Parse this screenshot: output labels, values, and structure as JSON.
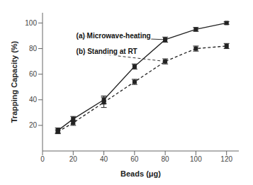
{
  "chart_data": {
    "type": "line",
    "x": [
      10,
      20,
      40,
      60,
      80,
      100,
      120
    ],
    "series": [
      {
        "color": "#222222",
        "line_style": "solid",
        "marker": "square",
        "values": [
          16,
          25,
          40,
          66,
          87,
          95,
          100
        ],
        "errors": [
          2,
          2,
          3,
          2,
          2,
          1.5,
          1
        ]
      },
      {
        "color": "#222222",
        "line_style": "dashed",
        "marker": "square",
        "values": [
          15,
          22,
          38,
          54,
          70,
          80,
          82
        ],
        "errors": [
          1.5,
          2,
          4,
          2,
          2,
          2,
          2
        ]
      }
    ],
    "xlabel": "Beads (μg)",
    "ylabel": "Trapping Capacity (%)",
    "xlim": [
      0,
      128
    ],
    "ylim": [
      0,
      108
    ],
    "xticks": [
      0,
      20,
      40,
      60,
      80,
      100,
      120
    ],
    "yticks": [
      20,
      40,
      60,
      80,
      100
    ],
    "grid": false,
    "annotations": [
      {
        "text": "(a) Microwave-heating",
        "xy": [
          80,
          87
        ],
        "xytext": [
          22,
          90
        ]
      },
      {
        "text": "(b) Standing at RT",
        "xy": [
          80,
          70
        ],
        "xytext": [
          22,
          78
        ]
      }
    ]
  }
}
